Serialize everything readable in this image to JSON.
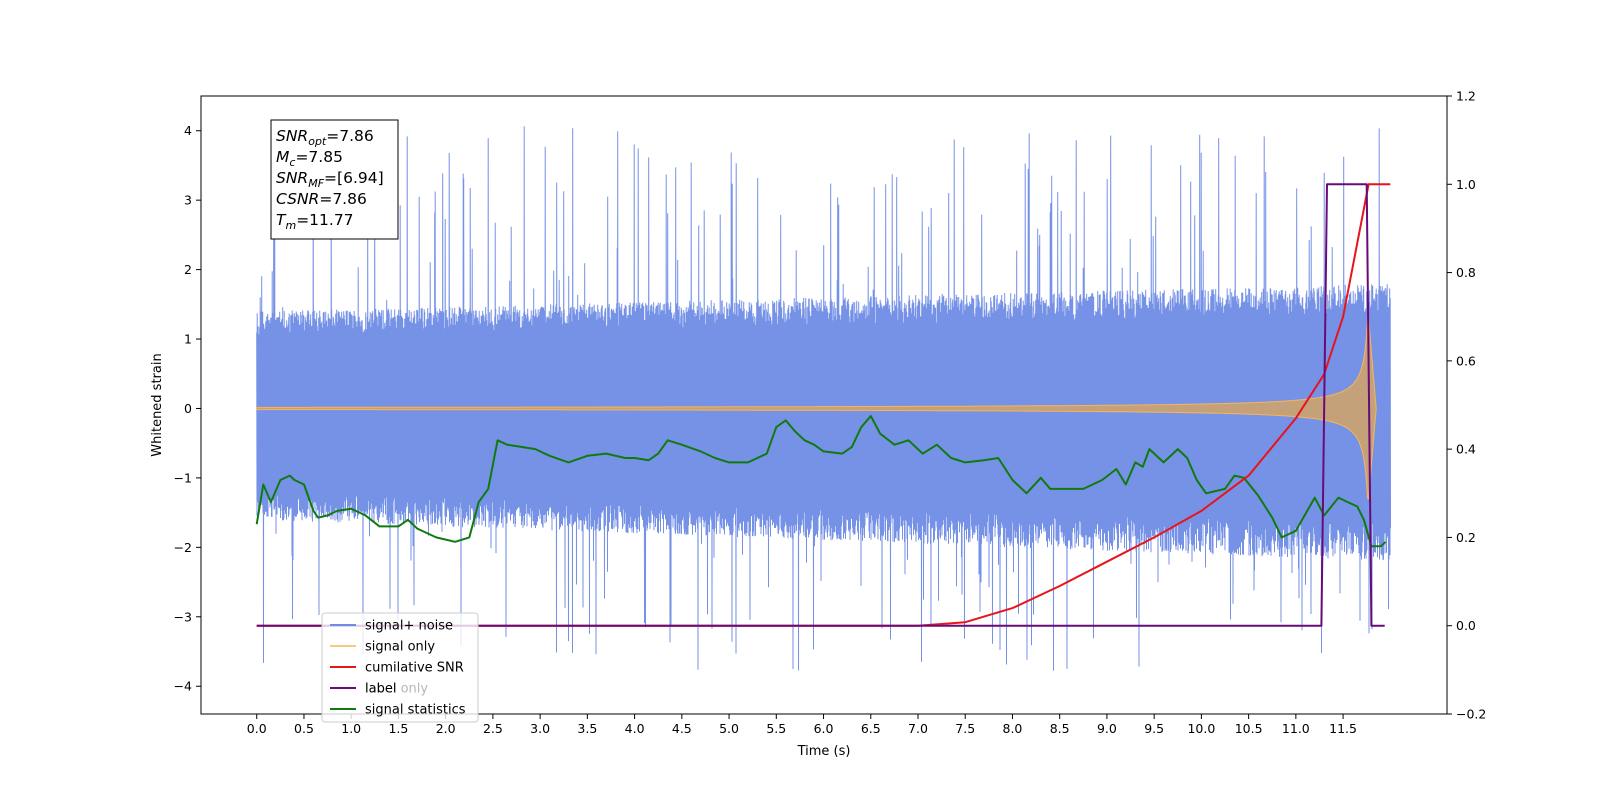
{
  "colors": {
    "noise": "#6f8ce6",
    "signal": "#f7b55a",
    "csnr": "#e8141c",
    "label": "#6a0a77",
    "label_only": "#b7b7b7",
    "stats": "#107a10",
    "background": "#ffffff",
    "axes": "#000000"
  },
  "chart_data": {
    "type": "line",
    "xlabel": "Time (s)",
    "ylabel": "Whitened strain",
    "xlim": [
      -0.59,
      12.6
    ],
    "ylim_left": [
      -4.4,
      4.5
    ],
    "ylim_right": [
      -0.2,
      1.2
    ],
    "x_ticks": [
      "0.0",
      "0.5",
      "1.0",
      "1.5",
      "2.0",
      "2.5",
      "3.0",
      "3.5",
      "4.0",
      "4.5",
      "5.0",
      "5.5",
      "6.0",
      "6.5",
      "7.0",
      "7.5",
      "8.0",
      "8.5",
      "9.0",
      "9.5",
      "10.0",
      "10.5",
      "11.0",
      "11.5"
    ],
    "y_ticks_left": [
      "4",
      "3",
      "2",
      "1",
      "0",
      "−1",
      "−2",
      "−3",
      "−4"
    ],
    "y_ticks_right": [
      "1.2",
      "1.0",
      "0.8",
      "0.6",
      "0.4",
      "0.2",
      "0.0",
      "−0.2"
    ],
    "grid": false,
    "legend_position": "lower-left",
    "series": [
      {
        "name": "signal+ noise",
        "axis": "left",
        "kind": "noise",
        "x_range": [
          0.0,
          12.0
        ],
        "band_low": [
          -1.6,
          -2.2
        ],
        "band_high": [
          1.4,
          1.8
        ],
        "peak_max": 4.1,
        "peak_min": -3.8
      },
      {
        "name": "signal only",
        "axis": "left",
        "kind": "chirp",
        "x_range": [
          0.0,
          11.85
        ],
        "merge_time": 11.77,
        "peak_amplitude": 1.3
      },
      {
        "name": "cumilative SNR",
        "axis": "right",
        "x": [
          0.0,
          7.0,
          7.5,
          8.0,
          8.5,
          9.0,
          9.5,
          10.0,
          10.5,
          11.0,
          11.3,
          11.5,
          11.77,
          12.0
        ],
        "y": [
          0.0,
          0.0,
          0.008,
          0.04,
          0.09,
          0.145,
          0.2,
          0.26,
          0.34,
          0.47,
          0.57,
          0.7,
          1.0,
          1.0
        ]
      },
      {
        "name": "label",
        "axis": "right",
        "x": [
          0.0,
          11.27,
          11.33,
          11.75,
          11.8,
          11.94
        ],
        "y": [
          0.0,
          0.0,
          1.0,
          1.0,
          0.0,
          0.0
        ]
      },
      {
        "name": "label only",
        "axis": "right",
        "x": [],
        "y": []
      },
      {
        "name": "signal statistics",
        "axis": "right",
        "x": [
          0.0,
          0.07,
          0.15,
          0.25,
          0.35,
          0.4,
          0.5,
          0.6,
          0.65,
          0.75,
          0.85,
          1.0,
          1.15,
          1.3,
          1.5,
          1.6,
          1.7,
          1.9,
          2.1,
          2.25,
          2.35,
          2.45,
          2.55,
          2.65,
          2.8,
          2.95,
          3.1,
          3.3,
          3.5,
          3.7,
          3.9,
          4.0,
          4.15,
          4.25,
          4.35,
          4.5,
          4.7,
          4.85,
          5.0,
          5.2,
          5.4,
          5.5,
          5.6,
          5.7,
          5.8,
          5.9,
          6.0,
          6.2,
          6.3,
          6.4,
          6.5,
          6.6,
          6.75,
          6.9,
          7.05,
          7.2,
          7.35,
          7.5,
          7.7,
          7.85,
          8.0,
          8.15,
          8.3,
          8.4,
          8.6,
          8.75,
          8.95,
          9.1,
          9.2,
          9.3,
          9.38,
          9.45,
          9.6,
          9.75,
          9.85,
          9.95,
          10.05,
          10.25,
          10.35,
          10.45,
          10.6,
          10.75,
          10.85,
          11.0,
          11.2,
          11.3,
          11.45,
          11.55,
          11.65,
          11.72,
          11.8,
          11.9,
          11.95
        ],
        "y": [
          0.23,
          0.32,
          0.28,
          0.33,
          0.34,
          0.33,
          0.32,
          0.26,
          0.245,
          0.25,
          0.26,
          0.265,
          0.25,
          0.225,
          0.225,
          0.24,
          0.22,
          0.2,
          0.19,
          0.2,
          0.28,
          0.31,
          0.42,
          0.41,
          0.405,
          0.4,
          0.385,
          0.37,
          0.385,
          0.39,
          0.38,
          0.38,
          0.375,
          0.39,
          0.42,
          0.41,
          0.395,
          0.38,
          0.37,
          0.37,
          0.39,
          0.45,
          0.465,
          0.44,
          0.42,
          0.41,
          0.395,
          0.39,
          0.405,
          0.45,
          0.475,
          0.435,
          0.41,
          0.42,
          0.39,
          0.41,
          0.38,
          0.37,
          0.375,
          0.38,
          0.33,
          0.3,
          0.335,
          0.31,
          0.31,
          0.31,
          0.33,
          0.355,
          0.32,
          0.37,
          0.36,
          0.4,
          0.37,
          0.4,
          0.38,
          0.33,
          0.3,
          0.31,
          0.34,
          0.335,
          0.295,
          0.245,
          0.2,
          0.215,
          0.29,
          0.25,
          0.29,
          0.28,
          0.27,
          0.24,
          0.18,
          0.18,
          0.19
        ]
      }
    ],
    "annotation": {
      "lines": [
        {
          "base": "SNR",
          "sub": "opt",
          "value": "=7.86"
        },
        {
          "base": "M",
          "sub": "c",
          "value": "=7.85"
        },
        {
          "base": "SNR",
          "sub": "MF",
          "value": "=[6.94]"
        },
        {
          "base": "CSNR",
          "sub": "",
          "value": "=7.86"
        },
        {
          "base": "T",
          "sub": "m",
          "value": "=11.77"
        }
      ]
    }
  }
}
